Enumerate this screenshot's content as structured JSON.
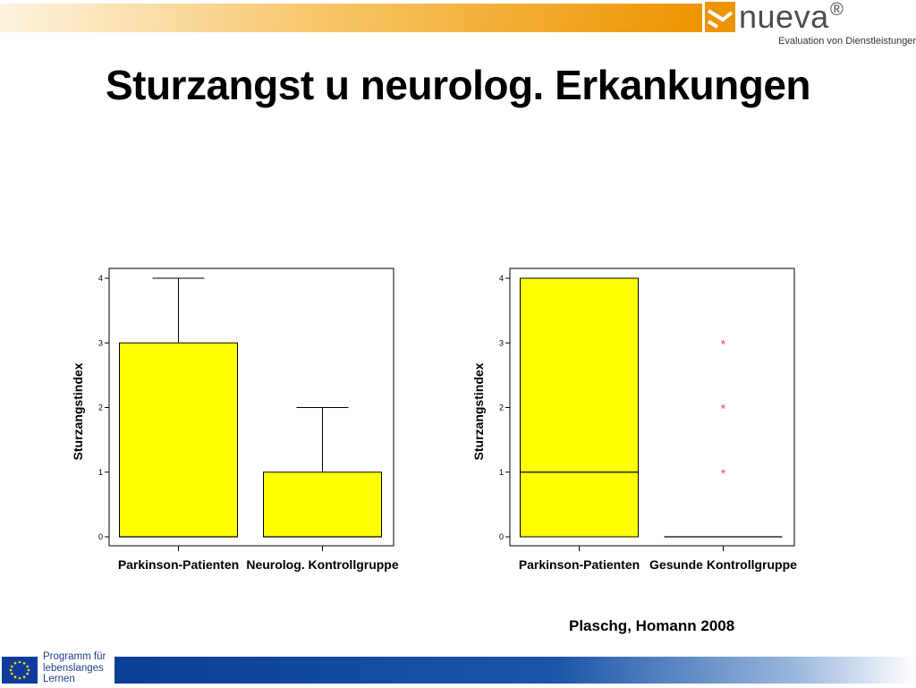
{
  "header": {
    "brand": "nueva",
    "registered_mark": "®",
    "tagline": "Evaluation von Dienstleistungen"
  },
  "slide": {
    "title": "Sturzangst u neurolog. Erkankungen",
    "citation": "Plaschg, Homann 2008"
  },
  "footer": {
    "program_text": "Programm für\nlebenslanges\nLernen"
  },
  "colors": {
    "box_fill": "#ffff00",
    "outlier": "#ff4040",
    "accent_orange": "#ee9400",
    "eu_blue": "#0f3c9c"
  },
  "chart_data": [
    {
      "type": "boxplot",
      "ylabel": "Sturzangstindex",
      "ylim": [
        0,
        4
      ],
      "yticks": [
        "0",
        "1",
        "2",
        "3",
        "4"
      ],
      "categories": [
        "Parkinson-Patienten",
        "Neurolog. Kontrollgruppe"
      ],
      "boxes": [
        {
          "min": 0,
          "q1": 0,
          "median": 0,
          "q3": 3,
          "max": 4,
          "outliers": []
        },
        {
          "min": 0,
          "q1": 0,
          "median": 0,
          "q3": 1,
          "max": 2,
          "outliers": []
        }
      ]
    },
    {
      "type": "boxplot",
      "ylabel": "Sturzangstindex",
      "ylim": [
        0,
        4
      ],
      "yticks": [
        "0",
        "1",
        "2",
        "3",
        "4"
      ],
      "categories": [
        "Parkinson-Patienten",
        "Gesunde Kontrollgruppe"
      ],
      "boxes": [
        {
          "min": 0,
          "q1": 0,
          "median": 1,
          "q3": 4,
          "max": 4,
          "outliers": []
        },
        {
          "min": 0,
          "q1": 0,
          "median": 0,
          "q3": 0,
          "max": 0,
          "outliers": [
            1,
            2,
            3
          ]
        }
      ]
    }
  ]
}
